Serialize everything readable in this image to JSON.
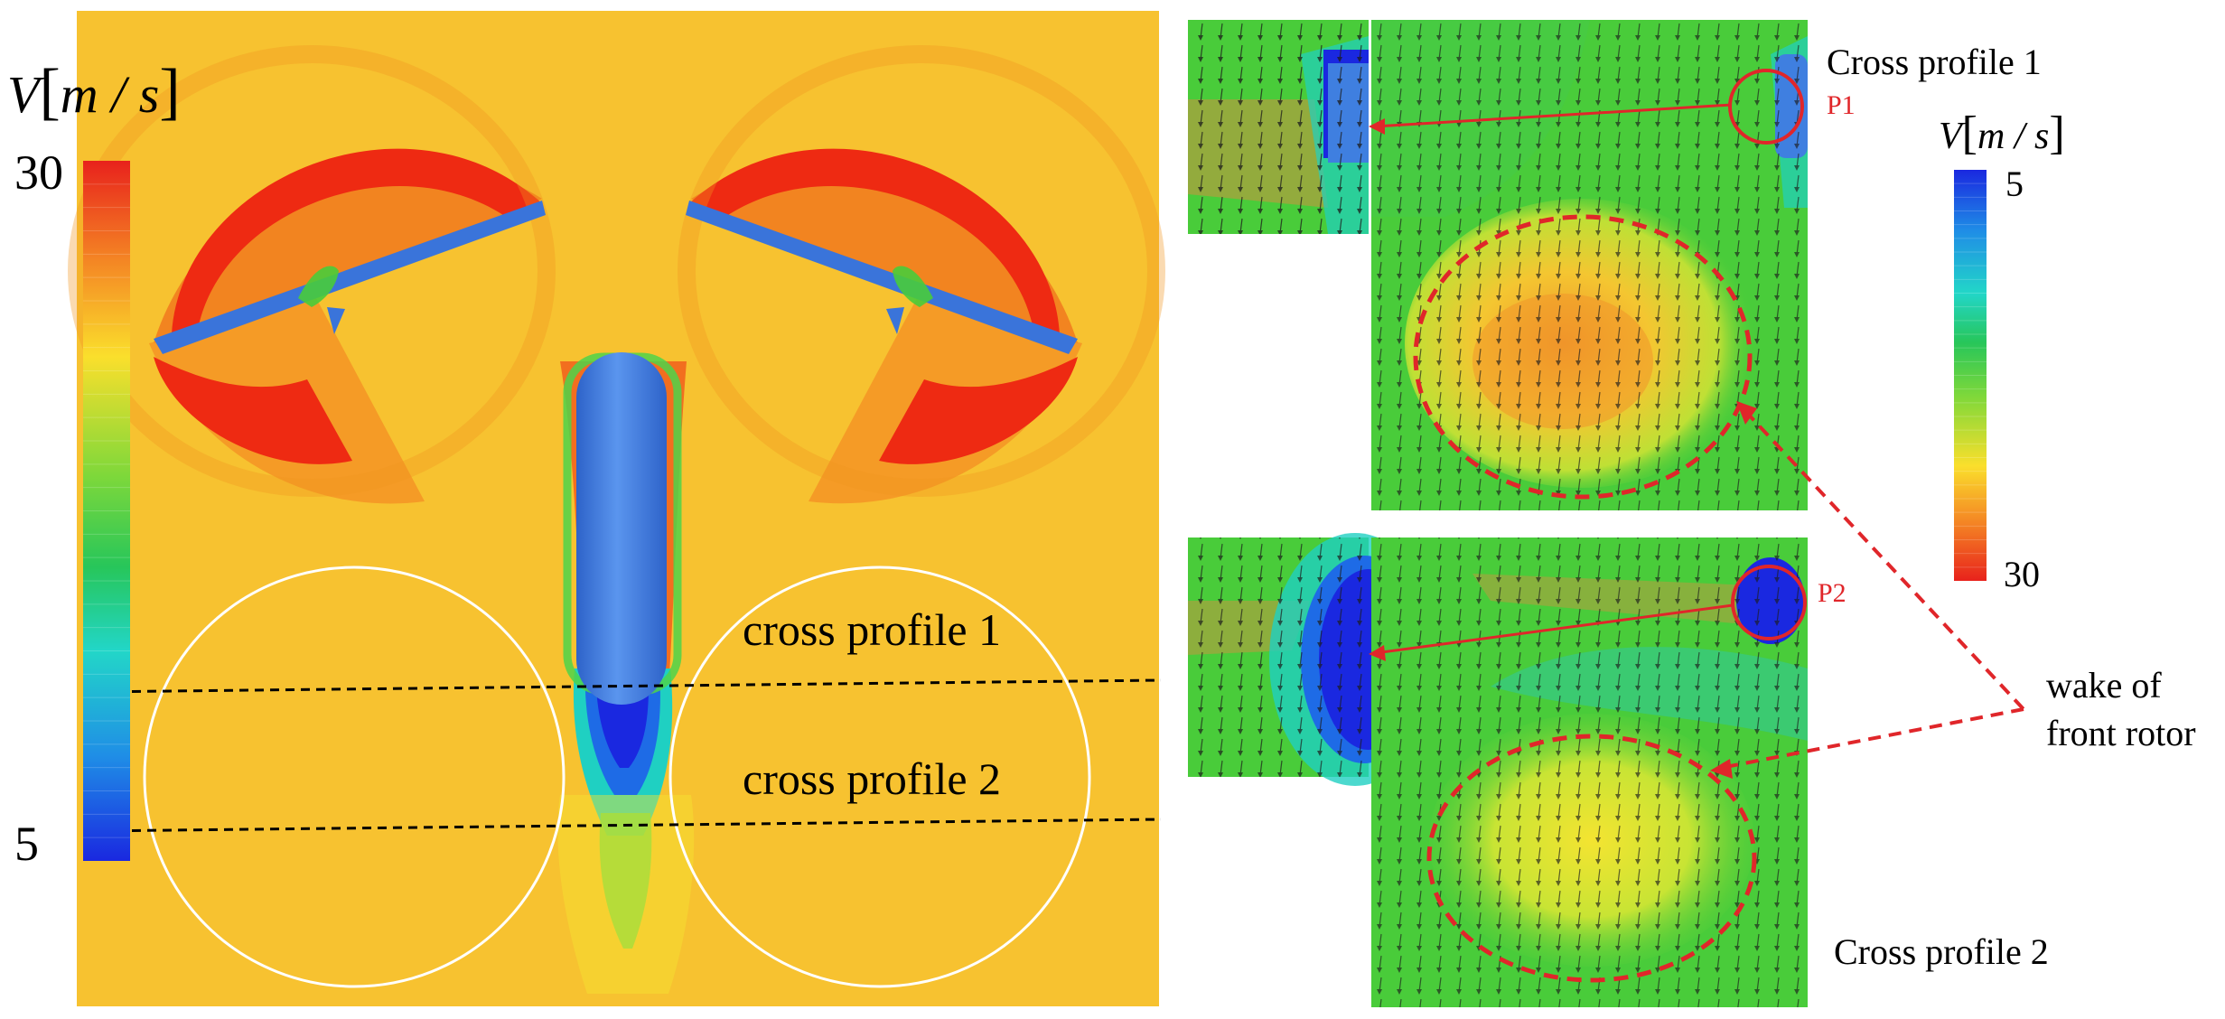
{
  "left_panel": {
    "colorbar": {
      "symbol": "V",
      "unit": "m / s",
      "max_label": "30",
      "min_label": "5"
    },
    "profile_labels": [
      "cross profile 1",
      "cross profile 2"
    ]
  },
  "right_panel": {
    "top_title": "Cross profile 1",
    "bottom_title": "Cross profile 2",
    "point_labels": [
      "P1",
      "P2"
    ],
    "colorbar": {
      "symbol": "V",
      "unit": "m / s",
      "min_label": "5",
      "max_label": "30"
    },
    "annotation": [
      "wake of",
      "front rotor"
    ]
  },
  "colors": {
    "background_flow": "#f7c230",
    "high_speed": "#ee2a12",
    "low_speed": "#1a3fe0",
    "body_blue": "#3f7fe0",
    "profile_field": "#49cc3a",
    "annotation_red": "#e0262a"
  }
}
